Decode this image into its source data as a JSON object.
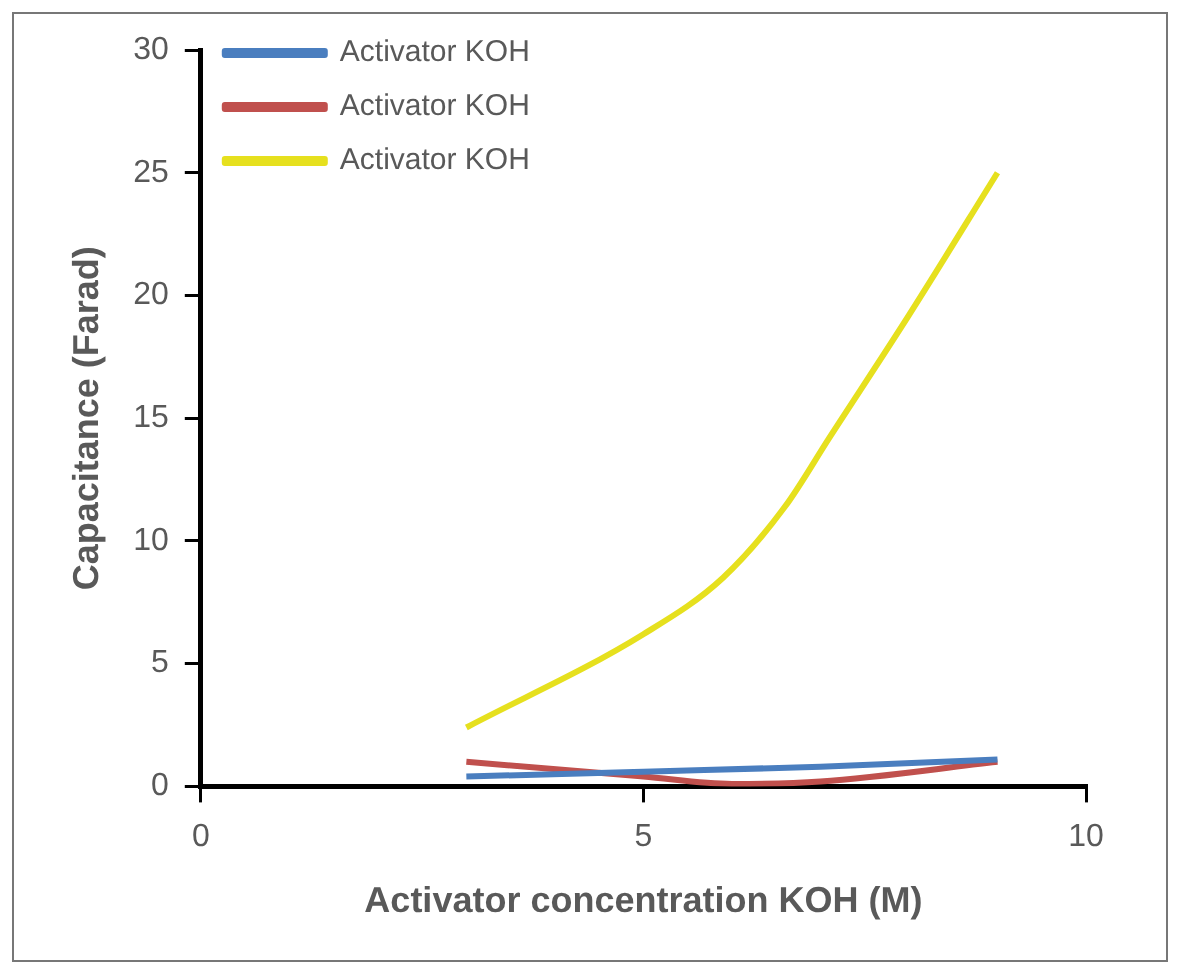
{
  "chart_data": {
    "type": "line",
    "xlabel": "Activator concentration KOH (M)",
    "ylabel": "Capacitance (Farad)",
    "xlim": [
      0,
      10
    ],
    "xticks": [
      0,
      5,
      10
    ],
    "ylim": [
      0,
      30
    ],
    "yticks": [
      0,
      5,
      10,
      15,
      20,
      25,
      30
    ],
    "grid": false,
    "legend": "top left",
    "marker": "none",
    "line_style": "solid",
    "series": [
      {
        "name": "Activator KOH",
        "color": "#4a7ebf",
        "x": [
          3,
          5,
          7,
          9
        ],
        "values": [
          0.4,
          0.6,
          0.8,
          1.1
        ]
      },
      {
        "name": "Activator KOH",
        "color": "#c0504d",
        "x": [
          3,
          5,
          6,
          7,
          9
        ],
        "values": [
          1.0,
          0.4,
          0.1,
          0.2,
          1.0
        ]
      },
      {
        "name": "Activator KOH",
        "color": "#e6e01e",
        "x": [
          3,
          5,
          5.9,
          6.6,
          7.1,
          8,
          9
        ],
        "values": [
          2.4,
          6.2,
          8.5,
          11.4,
          14.2,
          19.2,
          25.0
        ]
      }
    ]
  }
}
